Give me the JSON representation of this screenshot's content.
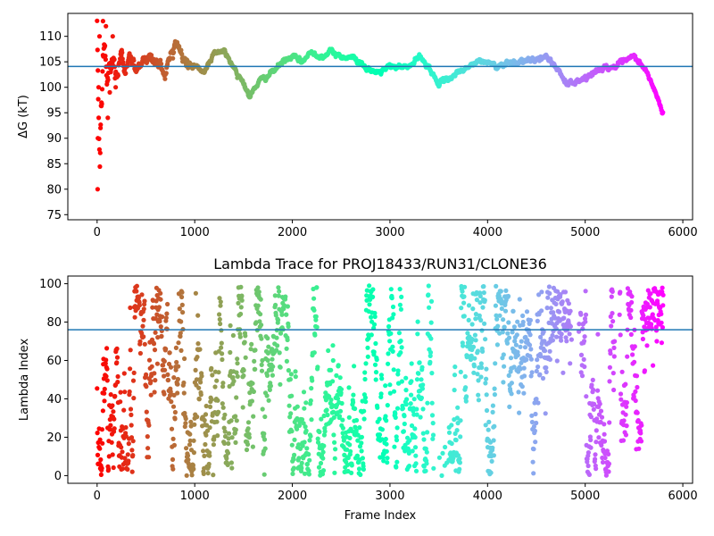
{
  "chart_data": [
    {
      "type": "scatter",
      "title": "",
      "xlabel": "",
      "ylabel": "ΔG (kT)",
      "xlim": [
        -300,
        6100
      ],
      "ylim": [
        74,
        114.5
      ],
      "xticks": [
        0,
        1000,
        2000,
        3000,
        4000,
        5000,
        6000
      ],
      "xtick_labels": [
        "0",
        "1000",
        "2000",
        "3000",
        "4000",
        "5000",
        "6000"
      ],
      "yticks": [
        75,
        80,
        85,
        90,
        95,
        100,
        105,
        110
      ],
      "ytick_labels": [
        "75",
        "80",
        "85",
        "90",
        "95",
        "100",
        "105",
        "110"
      ],
      "colormap": "rainbow (reversed over frame index: red at 0, purple at ~5800)",
      "hline": {
        "y": 104.1,
        "color": "#1f77b4"
      },
      "n_points": 5800,
      "trace": [
        {
          "x": 0,
          "y": 110
        },
        {
          "x": 10,
          "y": 100
        },
        {
          "x": 20,
          "y": 90
        },
        {
          "x": 30,
          "y": 84
        },
        {
          "x": 40,
          "y": 95
        },
        {
          "x": 60,
          "y": 104
        },
        {
          "x": 80,
          "y": 108
        },
        {
          "x": 100,
          "y": 101
        },
        {
          "x": 150,
          "y": 105
        },
        {
          "x": 200,
          "y": 103
        },
        {
          "x": 300,
          "y": 106
        },
        {
          "x": 400,
          "y": 104
        },
        {
          "x": 500,
          "y": 106
        },
        {
          "x": 600,
          "y": 105
        },
        {
          "x": 700,
          "y": 103
        },
        {
          "x": 800,
          "y": 109
        },
        {
          "x": 900,
          "y": 105
        },
        {
          "x": 1000,
          "y": 104
        },
        {
          "x": 1100,
          "y": 103
        },
        {
          "x": 1200,
          "y": 107
        },
        {
          "x": 1300,
          "y": 107
        },
        {
          "x": 1400,
          "y": 104
        },
        {
          "x": 1500,
          "y": 101
        },
        {
          "x": 1560,
          "y": 98
        },
        {
          "x": 1650,
          "y": 101
        },
        {
          "x": 1800,
          "y": 103
        },
        {
          "x": 1900,
          "y": 105
        },
        {
          "x": 2000,
          "y": 106
        },
        {
          "x": 2100,
          "y": 105
        },
        {
          "x": 2200,
          "y": 107
        },
        {
          "x": 2300,
          "y": 106
        },
        {
          "x": 2400,
          "y": 107
        },
        {
          "x": 2500,
          "y": 106
        },
        {
          "x": 2600,
          "y": 106
        },
        {
          "x": 2700,
          "y": 105
        },
        {
          "x": 2800,
          "y": 103
        },
        {
          "x": 2900,
          "y": 103
        },
        {
          "x": 3000,
          "y": 104
        },
        {
          "x": 3100,
          "y": 104
        },
        {
          "x": 3200,
          "y": 104
        },
        {
          "x": 3300,
          "y": 106
        },
        {
          "x": 3400,
          "y": 104
        },
        {
          "x": 3480,
          "y": 101
        },
        {
          "x": 3550,
          "y": 101
        },
        {
          "x": 3700,
          "y": 103
        },
        {
          "x": 3800,
          "y": 104
        },
        {
          "x": 3900,
          "y": 105
        },
        {
          "x": 4000,
          "y": 105
        },
        {
          "x": 4100,
          "y": 104
        },
        {
          "x": 4200,
          "y": 105
        },
        {
          "x": 4400,
          "y": 105
        },
        {
          "x": 4600,
          "y": 106
        },
        {
          "x": 4700,
          "y": 104
        },
        {
          "x": 4800,
          "y": 101
        },
        {
          "x": 4900,
          "y": 101
        },
        {
          "x": 5000,
          "y": 102
        },
        {
          "x": 5100,
          "y": 103
        },
        {
          "x": 5200,
          "y": 104
        },
        {
          "x": 5300,
          "y": 104
        },
        {
          "x": 5400,
          "y": 105
        },
        {
          "x": 5500,
          "y": 106
        },
        {
          "x": 5600,
          "y": 104
        },
        {
          "x": 5700,
          "y": 100
        },
        {
          "x": 5800,
          "y": 94.5
        }
      ],
      "scatter_outliers": [
        {
          "x": 5,
          "y": 80
        },
        {
          "x": 8,
          "y": 90
        },
        {
          "x": 15,
          "y": 100
        },
        {
          "x": 25,
          "y": 110
        },
        {
          "x": 35,
          "y": 92
        },
        {
          "x": 45,
          "y": 97
        },
        {
          "x": 60,
          "y": 113
        },
        {
          "x": 90,
          "y": 112
        },
        {
          "x": 110,
          "y": 94
        },
        {
          "x": 130,
          "y": 99
        },
        {
          "x": 160,
          "y": 110
        },
        {
          "x": 190,
          "y": 100
        }
      ]
    },
    {
      "type": "scatter",
      "title": "Lambda Trace for PROJ18433/RUN31/CLONE36",
      "xlabel": "Frame Index",
      "ylabel": "Lambda Index",
      "xlim": [
        -300,
        6100
      ],
      "ylim": [
        -4,
        104
      ],
      "xticks": [
        0,
        1000,
        2000,
        3000,
        4000,
        5000,
        6000
      ],
      "xtick_labels": [
        "0",
        "1000",
        "2000",
        "3000",
        "4000",
        "5000",
        "6000"
      ],
      "yticks": [
        0,
        20,
        40,
        60,
        80,
        100
      ],
      "ytick_labels": [
        "0",
        "20",
        "40",
        "60",
        "80",
        "100"
      ],
      "colormap": "rainbow (reversed over frame index: red at 0, purple at ~5800)",
      "hline": {
        "y": 76,
        "color": "#1f77b4"
      },
      "n_points": 5800,
      "value_range": [
        0,
        99
      ],
      "dense_top_bands": [
        {
          "x": [
            4650,
            4850
          ],
          "y": [
            70,
            99
          ]
        },
        {
          "x": [
            5580,
            5800
          ],
          "y": [
            75,
            99
          ]
        }
      ],
      "sparse_regions": [
        {
          "x": [
            3450,
            3600
          ]
        },
        {
          "x": [
            4850,
            4950
          ]
        },
        {
          "x": [
            5300,
            5350
          ]
        }
      ]
    }
  ]
}
